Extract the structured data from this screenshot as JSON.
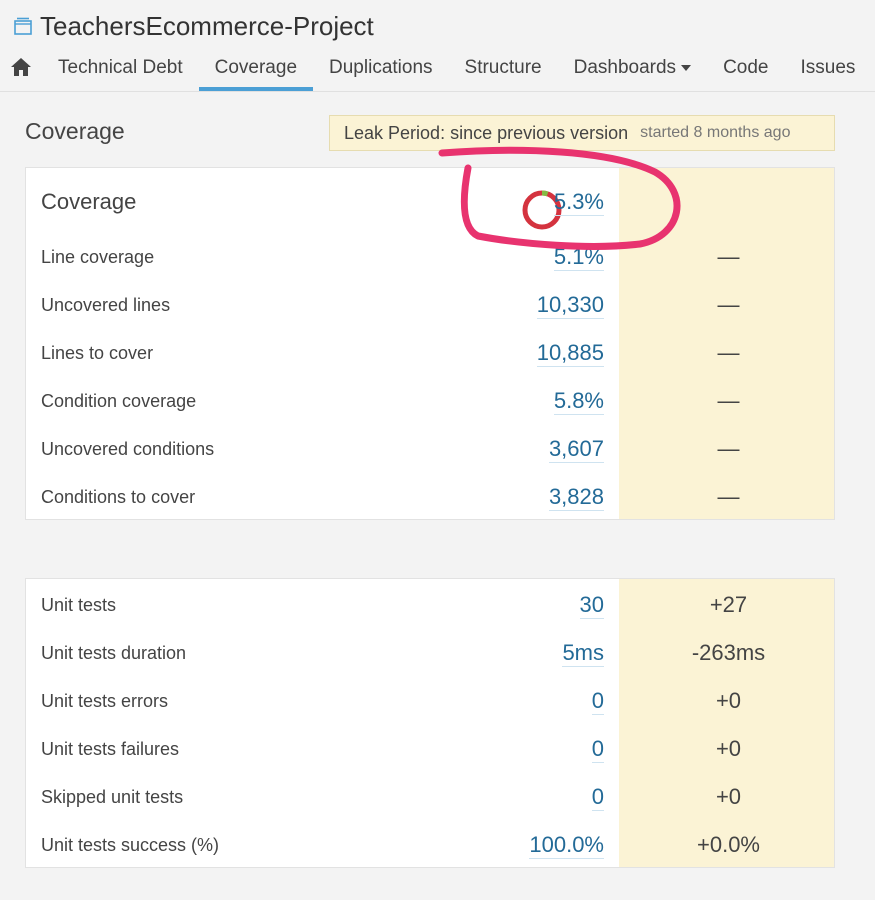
{
  "project": {
    "name": "TeachersEcommerce-Project"
  },
  "nav": {
    "tabs": [
      {
        "label": "Technical Debt"
      },
      {
        "label": "Coverage"
      },
      {
        "label": "Duplications"
      },
      {
        "label": "Structure"
      },
      {
        "label": "Dashboards"
      },
      {
        "label": "Code"
      },
      {
        "label": "Issues"
      }
    ]
  },
  "page": {
    "title": "Coverage"
  },
  "leak": {
    "label": "Leak Period: since previous version",
    "started": "started 8 months ago"
  },
  "coverage": {
    "heading": "Coverage",
    "value": "5.3%",
    "donut_fraction": 0.053,
    "rows": [
      {
        "label": "Line coverage",
        "value": "5.1%",
        "leak": "—"
      },
      {
        "label": "Uncovered lines",
        "value": "10,330",
        "leak": "—"
      },
      {
        "label": "Lines to cover",
        "value": "10,885",
        "leak": "—"
      },
      {
        "label": "Condition coverage",
        "value": "5.8%",
        "leak": "—"
      },
      {
        "label": "Uncovered conditions",
        "value": "3,607",
        "leak": "—"
      },
      {
        "label": "Conditions to cover",
        "value": "3,828",
        "leak": "—"
      }
    ]
  },
  "tests": {
    "rows": [
      {
        "label": "Unit tests",
        "value": "30",
        "leak": "+27"
      },
      {
        "label": "Unit tests duration",
        "value": "5ms",
        "leak": "-263ms"
      },
      {
        "label": "Unit tests errors",
        "value": "0",
        "leak": "+0"
      },
      {
        "label": "Unit tests failures",
        "value": "0",
        "leak": "+0"
      },
      {
        "label": "Skipped unit tests",
        "value": "0",
        "leak": "+0"
      },
      {
        "label": "Unit tests success (%)",
        "value": "100.0%",
        "leak": "+0.0%"
      }
    ]
  },
  "colors": {
    "link": "#236a97",
    "leak_bg": "#fbf3d5",
    "tab_active": "#4b9fd5",
    "annotation": "#e8336f",
    "donut_red": "#d4333f",
    "donut_green": "#85bb43"
  }
}
